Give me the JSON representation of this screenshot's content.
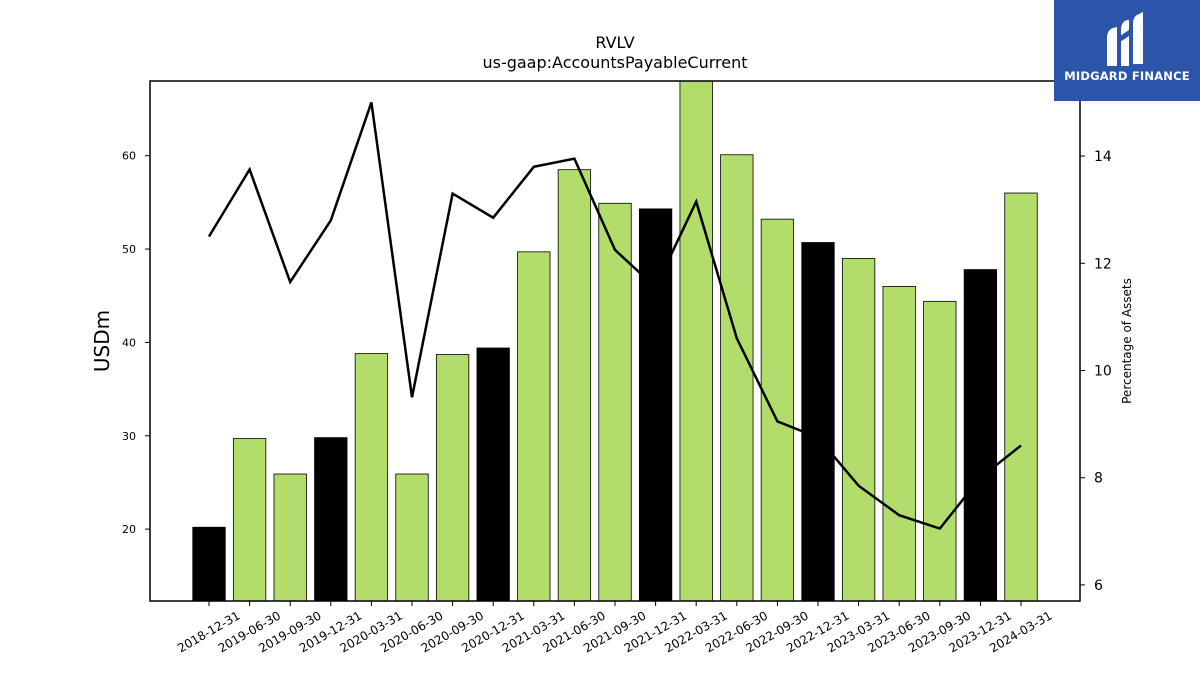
{
  "brand": {
    "name": "MIDGARD FINANCE",
    "logo_icon": "midgard-m-logo-icon",
    "background_color": "#2a55a8"
  },
  "chart_data": {
    "type": "bar",
    "title": "RVLV",
    "subtitle": "us-gaap:AccountsPayableCurrent",
    "ylabel": "USDm",
    "y2label": "Percentage of Assets",
    "ylim": [
      12.3,
      68
    ],
    "y2lim": [
      5.7,
      15.4
    ],
    "yticks": [
      20,
      30,
      40,
      50,
      60
    ],
    "y2ticks": [
      6,
      8,
      10,
      12,
      14
    ],
    "grid": false,
    "categories": [
      "2018-12-31",
      "2019-06-30",
      "2019-09-30",
      "2019-12-31",
      "2020-03-31",
      "2020-06-30",
      "2020-09-30",
      "2020-12-31",
      "2021-03-31",
      "2021-06-30",
      "2021-09-30",
      "2021-12-31",
      "2022-03-31",
      "2022-06-30",
      "2022-09-30",
      "2022-12-31",
      "2023-03-31",
      "2023-06-30",
      "2023-09-30",
      "2023-12-31",
      "2024-03-31"
    ],
    "series": [
      {
        "type": "bar",
        "axis": "left",
        "values": [
          20.2,
          29.7,
          25.9,
          29.8,
          38.8,
          25.9,
          38.7,
          39.4,
          49.7,
          58.5,
          54.9,
          54.3,
          68.5,
          60.1,
          53.2,
          50.7,
          49.0,
          46.0,
          44.4,
          47.8,
          56.0
        ],
        "colors": [
          "#000000",
          "#b3dd6a",
          "#b3dd6a",
          "#000000",
          "#b3dd6a",
          "#b3dd6a",
          "#b3dd6a",
          "#000000",
          "#b3dd6a",
          "#b3dd6a",
          "#b3dd6a",
          "#000000",
          "#b3dd6a",
          "#b3dd6a",
          "#b3dd6a",
          "#000000",
          "#b3dd6a",
          "#b3dd6a",
          "#b3dd6a",
          "#000000",
          "#b3dd6a"
        ]
      },
      {
        "type": "line",
        "axis": "right",
        "color": "#000000",
        "values": [
          12.5,
          13.75,
          11.65,
          12.8,
          15.0,
          9.5,
          13.3,
          12.85,
          13.8,
          13.95,
          12.25,
          11.55,
          13.15,
          10.6,
          9.05,
          8.75,
          7.85,
          7.3,
          7.05,
          8.0,
          8.6
        ]
      }
    ]
  }
}
